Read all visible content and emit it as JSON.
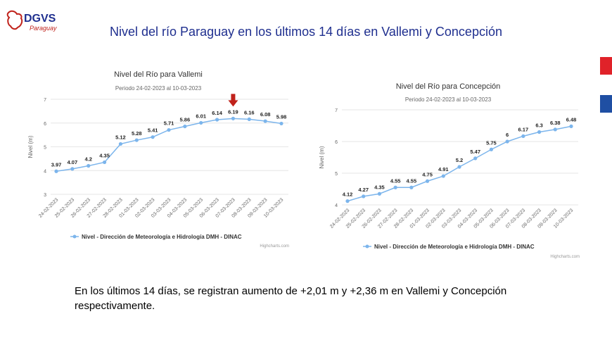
{
  "header": {
    "logo_text": "DGVS",
    "logo_subtext": "Paraguay",
    "title": "Nivel del río Paraguay en los últimos 14 días en Vallemi y Concepción"
  },
  "summary": "En los últimos 14 días, se registran aumento de +2,01 m y +2,36 m en Vallemi y Concepción respectivamente.",
  "colors": {
    "title": "#1f2f8f",
    "series": "#7cb5ec",
    "arrow": "#c0221b",
    "flag_red": "#e02229",
    "flag_blue": "#1f4fa3"
  },
  "chart_data": [
    {
      "type": "line",
      "title": "Nivel del Río para Vallemi",
      "subtitle": "Periodo 24-02-2023 al 10-03-2023",
      "ylabel": "Nivel (m)",
      "xlabel": "",
      "ylim": [
        3,
        7
      ],
      "yticks": [
        3,
        4,
        5,
        6,
        7
      ],
      "grid": true,
      "legend": "bottom-center",
      "credits": "Highcharts.com",
      "highlight": {
        "category": "07-03-2023",
        "marker": "down-arrow"
      },
      "categories": [
        "24-02-2023",
        "25-02-2023",
        "26-02-2023",
        "27-02-2023",
        "28-02-2023",
        "01-03-2023",
        "02-03-2023",
        "03-03-2023",
        "04-03-2023",
        "05-03-2023",
        "06-03-2023",
        "07-03-2023",
        "08-03-2023",
        "09-03-2023",
        "10-03-2023"
      ],
      "series": [
        {
          "name": "Nivel - Dirección de Meteorología e Hidrología DMH - DINAC",
          "values": [
            3.97,
            4.07,
            4.2,
            4.35,
            5.12,
            5.28,
            5.41,
            5.71,
            5.86,
            6.01,
            6.14,
            6.19,
            6.16,
            6.08,
            5.98
          ]
        }
      ]
    },
    {
      "type": "line",
      "title": "Nivel del Río para Concepción",
      "subtitle": "Periodo 24-02-2023 al 10-03-2023",
      "ylabel": "Nivel (m)",
      "xlabel": "",
      "ylim": [
        4,
        7
      ],
      "yticks": [
        4,
        5,
        6,
        7
      ],
      "grid": true,
      "legend": "bottom-center",
      "credits": "Highcharts.com",
      "categories": [
        "24-02-2023",
        "25-02-2023",
        "26-02-2023",
        "27-02-2023",
        "28-02-2023",
        "01-03-2023",
        "02-03-2023",
        "03-03-2023",
        "04-03-2023",
        "05-03-2023",
        "06-03-2023",
        "07-03-2023",
        "08-03-2023",
        "09-03-2023",
        "10-03-2023"
      ],
      "series": [
        {
          "name": "Nivel - Dirección de Meteorología e Hidrología DMH - DINAC",
          "values": [
            4.12,
            4.27,
            4.35,
            4.55,
            4.55,
            4.75,
            4.91,
            5.2,
            5.47,
            5.75,
            6,
            6.17,
            6.3,
            6.38,
            6.48
          ]
        }
      ]
    }
  ]
}
